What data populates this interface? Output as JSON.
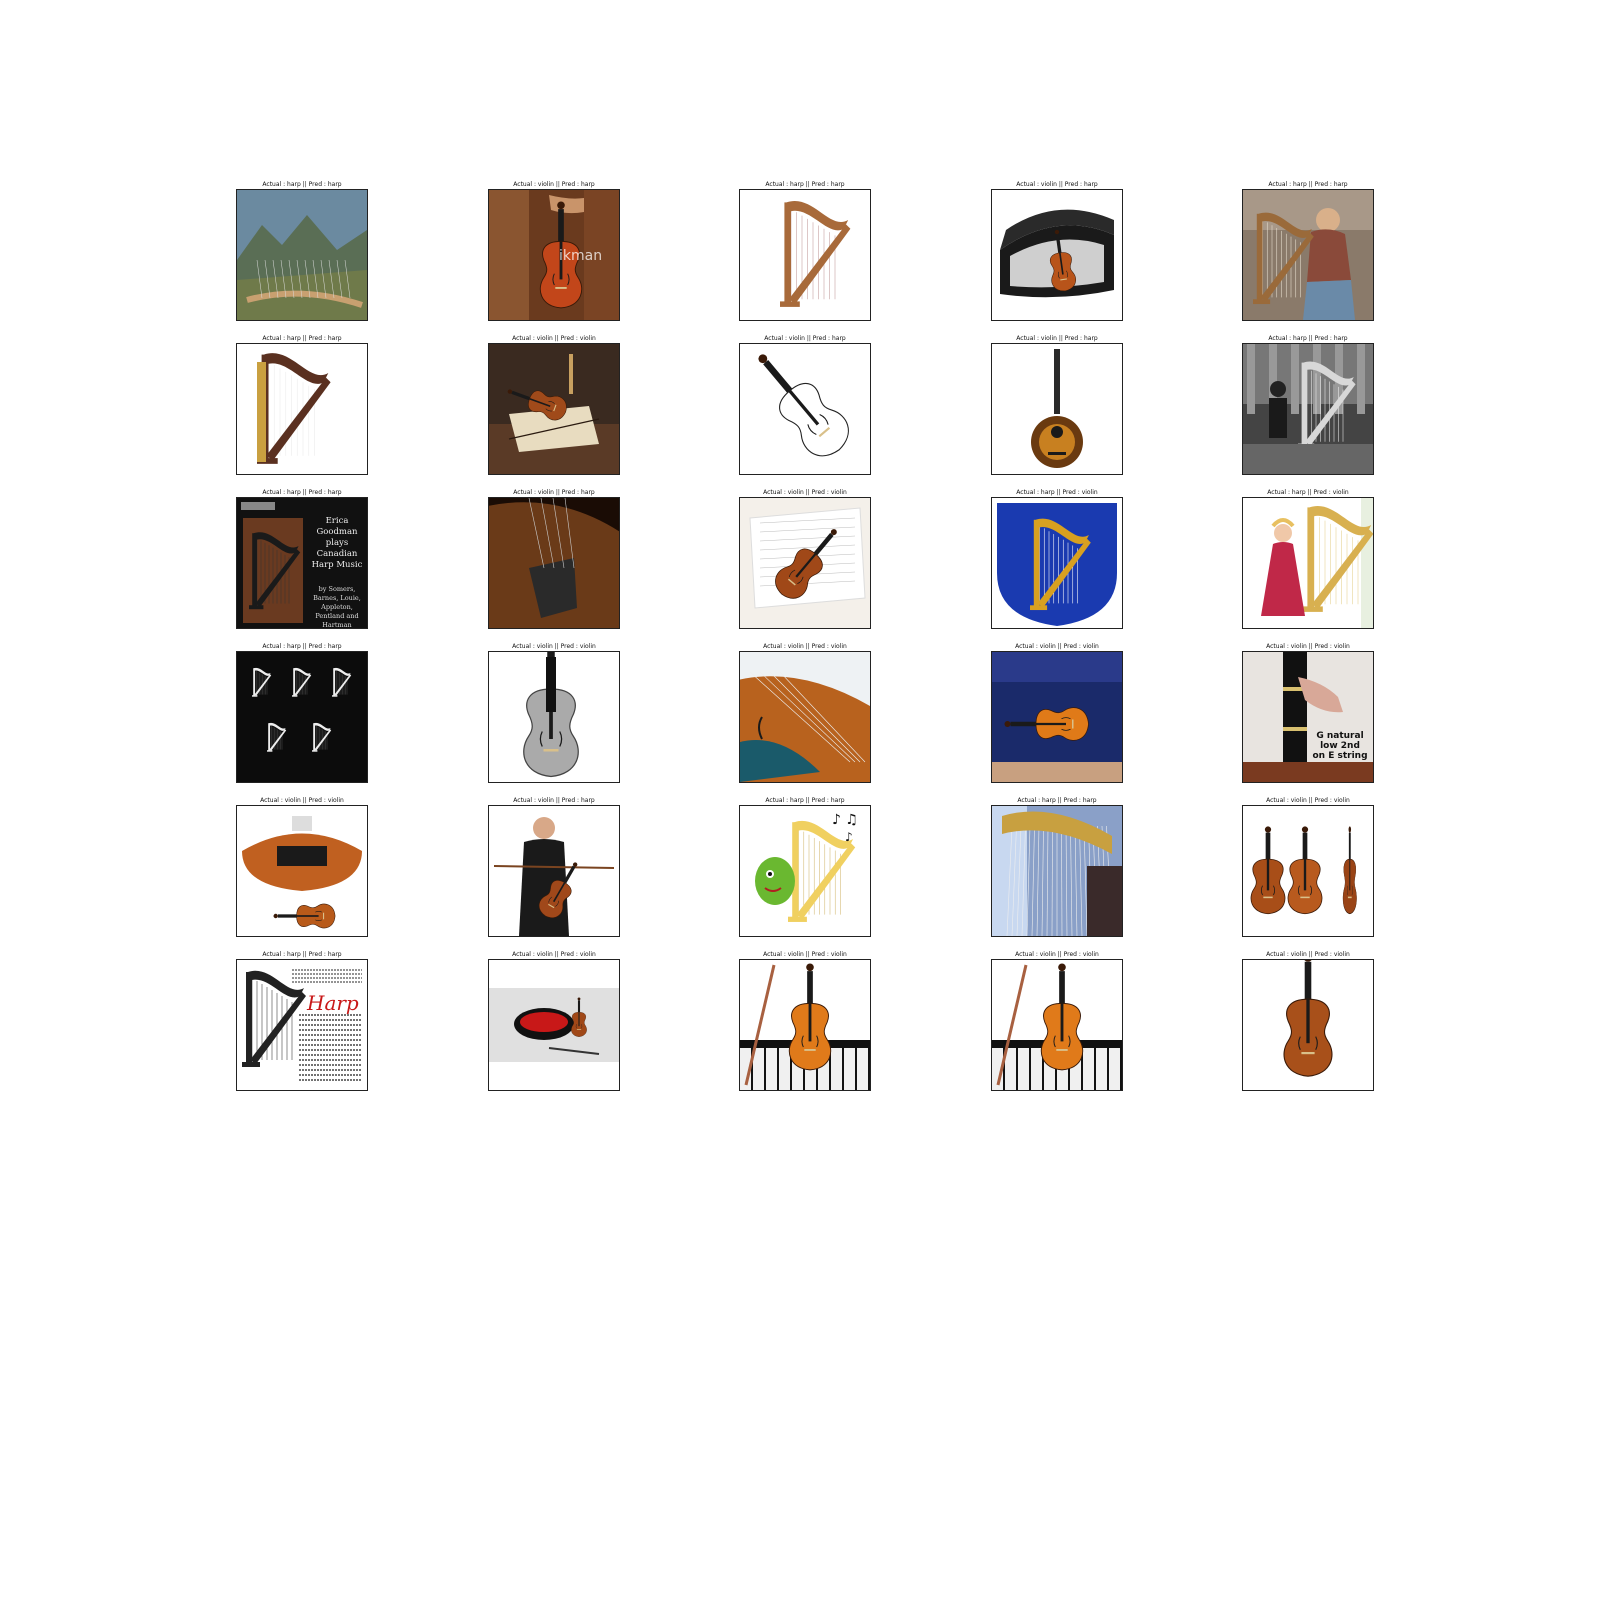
{
  "colors": {
    "violin": "#b8541a",
    "harp": "#a8783a",
    "ink": "#111111"
  },
  "cells": [
    {
      "title": "Actual : harp || Pred : harp",
      "scene": "mountain-harp"
    },
    {
      "title": "Actual : violin || Pred : harp",
      "scene": "hand-violin",
      "overlay_text": "ikman"
    },
    {
      "title": "Actual : harp || Pred : harp",
      "scene": "wood-harp-white"
    },
    {
      "title": "Actual : violin || Pred : harp",
      "scene": "violin-case"
    },
    {
      "title": "Actual : harp || Pred : harp",
      "scene": "woman-harp"
    },
    {
      "title": "Actual : harp || Pred : harp",
      "scene": "concert-harp"
    },
    {
      "title": "Actual : violin || Pred : violin",
      "scene": "violin-still-life"
    },
    {
      "title": "Actual : violin || Pred : harp",
      "scene": "violin-drawing"
    },
    {
      "title": "Actual : violin || Pred : harp",
      "scene": "acoustic-guitar"
    },
    {
      "title": "Actual : harp || Pred : harp",
      "scene": "bw-harp-photo"
    },
    {
      "title": "Actual : harp || Pred : harp",
      "scene": "album-cover",
      "cover_lines": [
        "Erica",
        "Goodman",
        "plays",
        "Canadian",
        "Harp Music"
      ],
      "cover_credits": [
        "by Somers,",
        "Barnes, Louie,",
        "Appleton,",
        "Pentland and",
        "Hartman"
      ]
    },
    {
      "title": "Actual : violin || Pred : harp",
      "scene": "violin-closeup-dark"
    },
    {
      "title": "Actual : violin || Pred : violin",
      "scene": "violin-sheet"
    },
    {
      "title": "Actual : harp || Pred : violin",
      "scene": "harp-crest"
    },
    {
      "title": "Actual : harp || Pred : violin",
      "scene": "harp-lady"
    },
    {
      "title": "Actual : harp || Pred : harp",
      "scene": "harp-icons"
    },
    {
      "title": "Actual : violin || Pred : violin",
      "scene": "violin-xray"
    },
    {
      "title": "Actual : violin || Pred : violin",
      "scene": "violin-closeup-blue"
    },
    {
      "title": "Actual : violin || Pred : violin",
      "scene": "violin-blue-case"
    },
    {
      "title": "Actual : violin || Pred : violin",
      "scene": "fingerboard",
      "overlay_lines": [
        "G natural",
        "low 2nd",
        "on E string"
      ]
    },
    {
      "title": "Actual : violin || Pred : violin",
      "scene": "violin-views"
    },
    {
      "title": "Actual : violin || Pred : harp",
      "scene": "man-violin"
    },
    {
      "title": "Actual : harp || Pred : harp",
      "scene": "cartoon-harp"
    },
    {
      "title": "Actual : harp || Pred : harp",
      "scene": "golden-harp-closeup"
    },
    {
      "title": "Actual : violin || Pred : violin",
      "scene": "three-violins"
    },
    {
      "title": "Actual : harp || Pred : harp",
      "scene": "harp-text-page",
      "overlay_text": "Harp"
    },
    {
      "title": "Actual : violin || Pred : violin",
      "scene": "mini-violin-case"
    },
    {
      "title": "Actual : violin || Pred : violin",
      "scene": "violin-piano"
    },
    {
      "title": "Actual : violin || Pred : violin",
      "scene": "violin-piano"
    },
    {
      "title": "Actual : violin || Pred : violin",
      "scene": "violin-white"
    }
  ]
}
